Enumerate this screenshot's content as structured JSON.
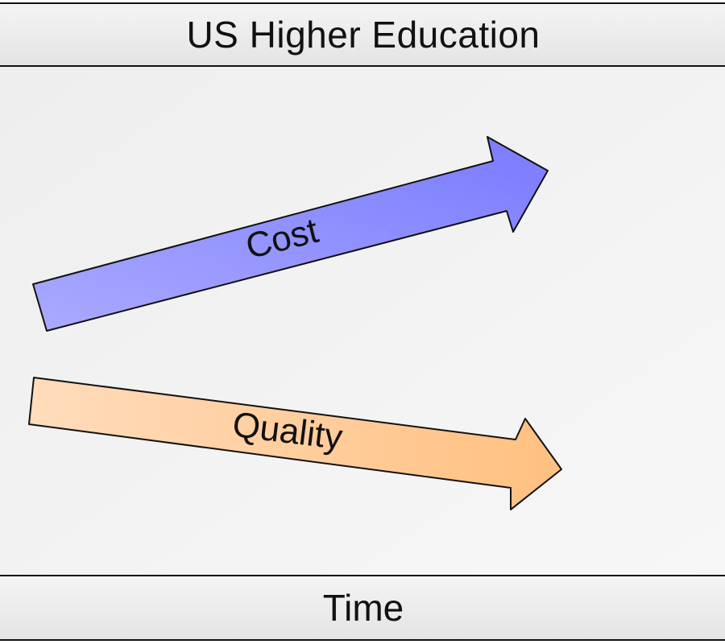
{
  "diagram": {
    "title": "US Higher Education",
    "axis_label": "Time",
    "arrows": [
      {
        "label": "Cost",
        "direction": "up",
        "color_start": "#aaaaff",
        "color_end": "#7a7aff"
      },
      {
        "label": "Quality",
        "direction": "down",
        "color_start": "#ffdcbc",
        "color_end": "#ffc080"
      }
    ]
  }
}
